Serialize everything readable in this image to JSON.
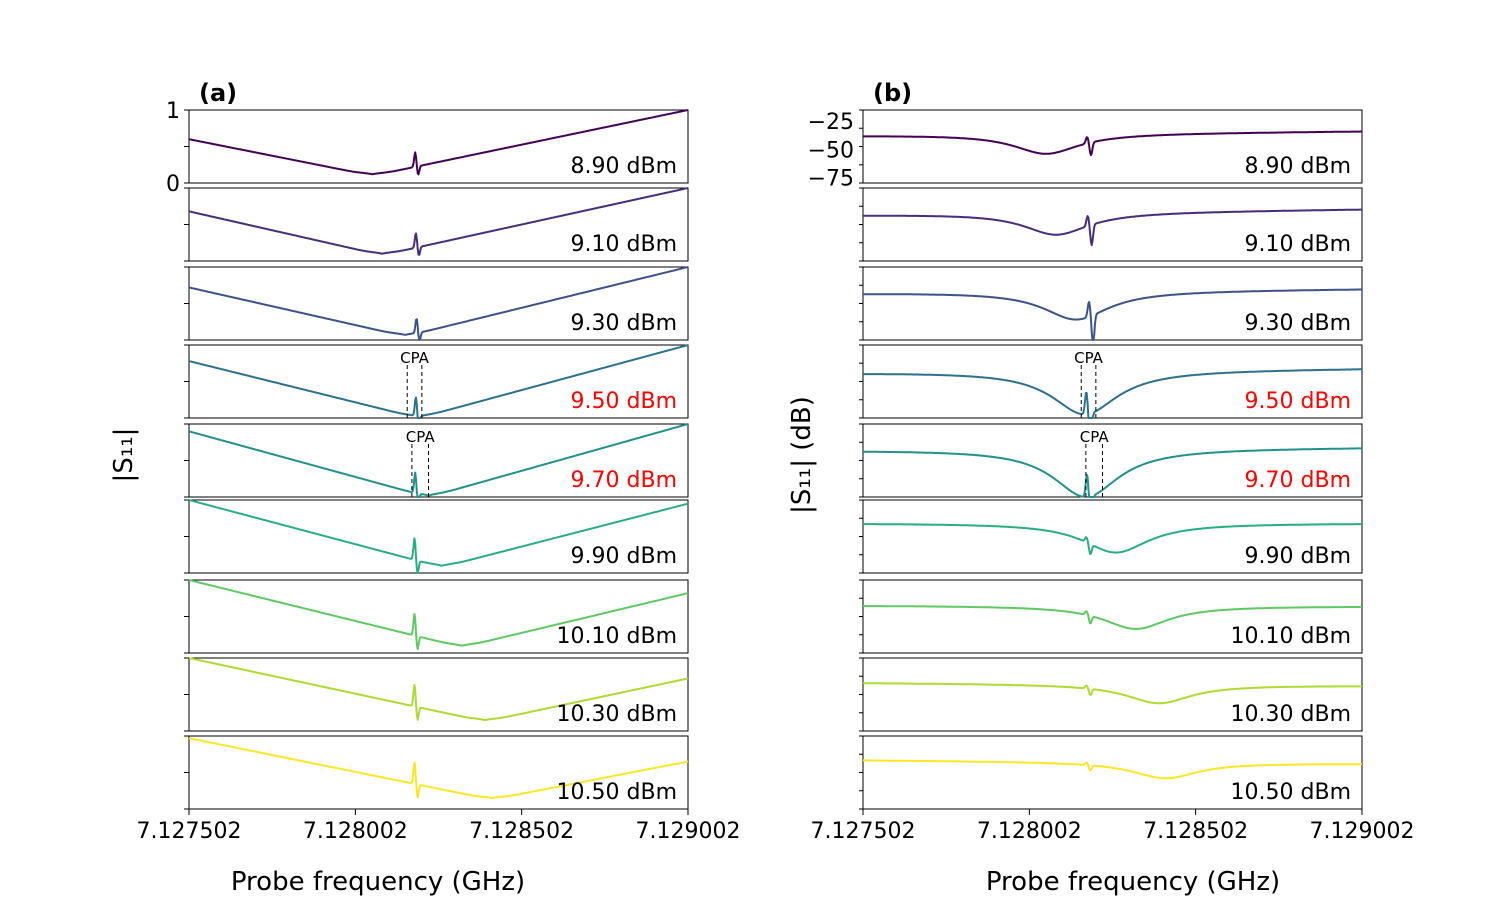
{
  "figure": {
    "xlabel": "Probe frequency (GHz)",
    "ylabel_a": "|S₁₁|",
    "ylabel_b": "|S₁₁| (dB)",
    "panel_a_tag": "(a)",
    "panel_b_tag": "(b)",
    "cpa_label": "CPA",
    "highlight_color": "#ff0000",
    "text_color": "#000000"
  },
  "chart_data": [
    {
      "type": "line",
      "panel": "(a)",
      "xlabel": "Probe frequency (GHz)",
      "ylabel": "|S11|",
      "xlim": [
        7.127502,
        7.129002
      ],
      "xticks": [
        "7.127502",
        "7.128002",
        "7.128502",
        "7.129002"
      ],
      "ylim_top_subplot": [
        0,
        1
      ],
      "yticks_top_subplot": [
        "0",
        "1"
      ],
      "series": [
        {
          "name": "8.90 dBm",
          "color": "#440154",
          "highlight": false,
          "min_x": 7.128054,
          "min_y": 0.1,
          "left_y": 0.6,
          "right_y": 1.0,
          "res_x": 7.128182,
          "res_amp": 0.2,
          "cpa": false
        },
        {
          "name": "9.10 dBm",
          "color": "#472d7b",
          "highlight": false,
          "min_x": 7.128082,
          "min_y": 0.08,
          "left_y": 0.68,
          "right_y": 1.0,
          "res_x": 7.128184,
          "res_amp": 0.2,
          "cpa": false
        },
        {
          "name": "9.30 dBm",
          "color": "#3b528b",
          "highlight": false,
          "min_x": 7.128152,
          "min_y": 0.05,
          "left_y": 0.72,
          "right_y": 1.0,
          "res_x": 7.128186,
          "res_amp": 0.2,
          "cpa": false
        },
        {
          "name": "9.50 dBm",
          "color": "#2c728e",
          "highlight": true,
          "min_x": 7.128192,
          "min_y": 0.0,
          "left_y": 0.78,
          "right_y": 1.0,
          "res_x": 7.128184,
          "res_amp": 0.26,
          "cpa": true,
          "cpa_x": [
            7.128158,
            7.128202
          ]
        },
        {
          "name": "9.70 dBm",
          "color": "#21918c",
          "highlight": true,
          "min_x": 7.128222,
          "min_y": 0.0,
          "left_y": 0.9,
          "right_y": 1.0,
          "res_x": 7.128182,
          "res_amp": 0.28,
          "cpa": true,
          "cpa_x": [
            7.128172,
            7.128222
          ]
        },
        {
          "name": "9.90 dBm",
          "color": "#28ae80",
          "highlight": false,
          "min_x": 7.128262,
          "min_y": 0.08,
          "left_y": 1.0,
          "right_y": 0.95,
          "res_x": 7.12818,
          "res_amp": 0.3,
          "cpa": false
        },
        {
          "name": "10.10 dBm",
          "color": "#5ec962",
          "highlight": false,
          "min_x": 7.128322,
          "min_y": 0.08,
          "left_y": 1.0,
          "right_y": 0.82,
          "res_x": 7.12818,
          "res_amp": 0.3,
          "cpa": false
        },
        {
          "name": "10.30 dBm",
          "color": "#addc30",
          "highlight": false,
          "min_x": 7.128392,
          "min_y": 0.13,
          "left_y": 1.0,
          "right_y": 0.72,
          "res_x": 7.12818,
          "res_amp": 0.3,
          "cpa": false
        },
        {
          "name": "10.50 dBm",
          "color": "#fde725",
          "highlight": false,
          "min_x": 7.128412,
          "min_y": 0.13,
          "left_y": 0.97,
          "right_y": 0.65,
          "res_x": 7.12818,
          "res_amp": 0.3,
          "cpa": false
        }
      ]
    },
    {
      "type": "line",
      "panel": "(b)",
      "xlabel": "Probe frequency (GHz)",
      "ylabel": "|S11| (dB)",
      "xlim": [
        7.127502,
        7.129002
      ],
      "xticks": [
        "7.127502",
        "7.128002",
        "7.128502",
        "7.129002"
      ],
      "ylim_top_subplot": [
        -80,
        -15
      ],
      "yticks_top_subplot": [
        "−25",
        "−50",
        "−75"
      ],
      "series": [
        {
          "name": "8.90 dBm",
          "color": "#440154",
          "highlight": false,
          "dip_x": 7.128052,
          "dip_y": 0.4,
          "base_left": 0.65,
          "base_right": 0.71,
          "res_x": 7.128182,
          "res_depth": 0.25,
          "cpa": false
        },
        {
          "name": "9.10 dBm",
          "color": "#472d7b",
          "highlight": false,
          "dip_x": 7.128082,
          "dip_y": 0.36,
          "base_left": 0.63,
          "base_right": 0.71,
          "res_x": 7.128184,
          "res_depth": 0.4,
          "cpa": false
        },
        {
          "name": "9.30 dBm",
          "color": "#3b528b",
          "highlight": false,
          "dip_x": 7.128142,
          "dip_y": 0.28,
          "base_left": 0.64,
          "base_right": 0.7,
          "res_x": 7.128188,
          "res_depth": 0.6,
          "cpa": false
        },
        {
          "name": "9.50 dBm",
          "color": "#2c728e",
          "highlight": true,
          "dip_x": 7.128168,
          "dip_y": 0.05,
          "base_left": 0.62,
          "base_right": 0.68,
          "res_x": 7.12818,
          "res_depth": 0.9,
          "cpa": true,
          "cpa_x": [
            7.128158,
            7.128202
          ]
        },
        {
          "name": "9.70 dBm",
          "color": "#21918c",
          "highlight": true,
          "dip_x": 7.128172,
          "dip_y": 0.0,
          "base_left": 0.64,
          "base_right": 0.68,
          "res_x": 7.128182,
          "res_depth": 0.9,
          "cpa": true,
          "cpa_x": [
            7.128172,
            7.128222
          ]
        },
        {
          "name": "9.90 dBm",
          "color": "#28ae80",
          "highlight": false,
          "dip_x": 7.128262,
          "dip_y": 0.28,
          "base_left": 0.68,
          "base_right": 0.68,
          "res_x": 7.12818,
          "res_depth": 0.2,
          "cpa": false
        },
        {
          "name": "10.10 dBm",
          "color": "#5ec962",
          "highlight": false,
          "dip_x": 7.128322,
          "dip_y": 0.33,
          "base_left": 0.65,
          "base_right": 0.64,
          "res_x": 7.12818,
          "res_depth": 0.15,
          "cpa": false
        },
        {
          "name": "10.30 dBm",
          "color": "#addc30",
          "highlight": false,
          "dip_x": 7.128392,
          "dip_y": 0.38,
          "base_left": 0.66,
          "base_right": 0.62,
          "res_x": 7.12818,
          "res_depth": 0.12,
          "cpa": false
        },
        {
          "name": "10.50 dBm",
          "color": "#fde725",
          "highlight": false,
          "dip_x": 7.128412,
          "dip_y": 0.42,
          "base_left": 0.67,
          "base_right": 0.62,
          "res_x": 7.12818,
          "res_depth": 0.1,
          "cpa": false
        }
      ]
    }
  ]
}
